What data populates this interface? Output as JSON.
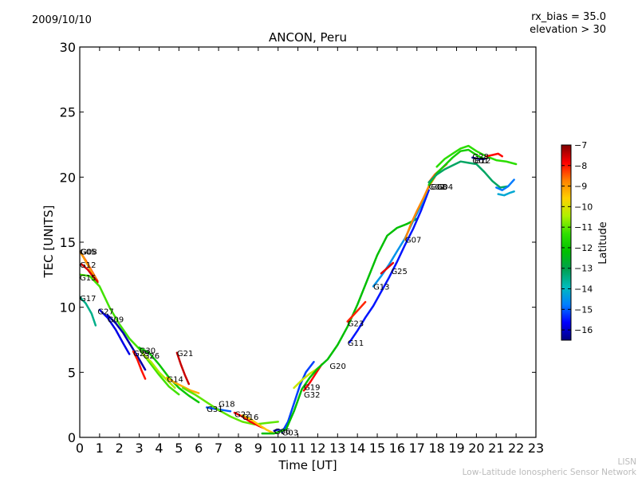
{
  "header": {
    "date": "2009/10/10",
    "rx_bias": "rx_bias = 35.0",
    "elevation": "elevation > 30"
  },
  "footer": {
    "line1": "LISN",
    "line2": "Low-Latitude Ionospheric Sensor Network"
  },
  "chart_data": {
    "type": "line",
    "title": "ANCON, Peru",
    "xlabel": "Time [UT]",
    "ylabel": "TEC [UNITS]",
    "xlim": [
      0,
      23
    ],
    "ylim": [
      0,
      30
    ],
    "xticks": [
      "0",
      "1",
      "2",
      "3",
      "4",
      "5",
      "6",
      "7",
      "8",
      "9",
      "10",
      "11",
      "12",
      "13",
      "14",
      "15",
      "16",
      "17",
      "18",
      "19",
      "20",
      "21",
      "22",
      "23"
    ],
    "yticks": [
      "0",
      "5",
      "10",
      "15",
      "20",
      "25",
      "30"
    ],
    "grid": false,
    "colorbar": {
      "label": "Latitude",
      "range": [
        -16.5,
        -7
      ],
      "ticks": [
        "−7",
        "−8",
        "−9",
        "−10",
        "−11",
        "−12",
        "−13",
        "−14",
        "−15",
        "−16"
      ],
      "colormap": [
        "#00007f",
        "#0000ff",
        "#007fff",
        "#00bcbc",
        "#00a050",
        "#00c000",
        "#30e000",
        "#b0f000",
        "#ffd000",
        "#ff8000",
        "#ff0000",
        "#7f0000"
      ]
    },
    "series": [
      {
        "name": "G05",
        "lat": -8.2,
        "x": [
          0.0,
          0.3,
          0.6,
          0.9
        ],
        "y": [
          14.3,
          13.6,
          12.8,
          12.0
        ]
      },
      {
        "name": "G08",
        "lat": -9.0,
        "x": [
          0.0,
          0.2,
          0.5,
          0.8
        ],
        "y": [
          14.3,
          13.8,
          13.0,
          12.2
        ]
      },
      {
        "name": "G12",
        "lat": -7.6,
        "x": [
          0.1,
          0.4,
          0.7,
          0.9
        ],
        "y": [
          13.3,
          12.9,
          12.3,
          11.9
        ]
      },
      {
        "name": "G15",
        "lat": -11.2,
        "x": [
          0.0,
          0.5,
          1.0,
          1.5,
          2.0,
          2.5,
          3.0,
          3.5,
          4.0,
          4.5,
          5.0
        ],
        "y": [
          12.5,
          12.4,
          11.6,
          10.0,
          8.7,
          7.6,
          6.8,
          5.8,
          4.8,
          3.9,
          3.3
        ]
      },
      {
        "name": "G17",
        "lat": -13.5,
        "x": [
          0.0,
          0.3,
          0.6,
          0.8
        ],
        "y": [
          10.8,
          10.3,
          9.5,
          8.6
        ]
      },
      {
        "name": "G27",
        "lat": -15.8,
        "x": [
          1.0,
          1.4,
          1.8,
          2.2,
          2.5
        ],
        "y": [
          9.8,
          9.2,
          8.3,
          7.2,
          6.4
        ]
      },
      {
        "name": "G09",
        "lat": -16.2,
        "x": [
          1.4,
          1.8,
          2.2,
          2.6,
          3.0,
          3.3
        ],
        "y": [
          9.4,
          8.8,
          8.0,
          7.0,
          6.0,
          5.2
        ]
      },
      {
        "name": "G30",
        "lat": -12.0,
        "x": [
          3.0,
          3.5,
          4.0,
          4.5,
          5.0,
          5.5,
          6.0
        ],
        "y": [
          6.9,
          6.5,
          5.6,
          4.6,
          3.8,
          3.2,
          2.7
        ]
      },
      {
        "name": "G29",
        "lat": -8.0,
        "x": [
          2.7,
          2.9,
          3.1,
          3.3
        ],
        "y": [
          6.6,
          6.0,
          5.2,
          4.5
        ]
      },
      {
        "name": "G26",
        "lat": -10.5,
        "x": [
          3.2,
          3.6,
          4.0,
          4.4,
          4.8
        ],
        "y": [
          6.4,
          5.8,
          5.0,
          4.4,
          3.8
        ]
      },
      {
        "name": "G21",
        "lat": -7.5,
        "x": [
          4.9,
          5.1,
          5.3,
          5.5
        ],
        "y": [
          6.5,
          5.6,
          4.8,
          4.1
        ]
      },
      {
        "name": "G14",
        "lat": -9.2,
        "x": [
          4.4,
          4.8,
          5.2,
          5.6,
          6.0
        ],
        "y": [
          4.6,
          4.2,
          3.9,
          3.6,
          3.4
        ]
      },
      {
        "name": "G31",
        "lat": -15.0,
        "x": [
          6.4,
          6.8,
          7.2,
          7.6
        ],
        "y": [
          2.3,
          2.2,
          2.1,
          2.0
        ]
      },
      {
        "name": "G18",
        "lat": -11.0,
        "x": [
          5.2,
          5.8,
          6.4,
          7.0,
          7.6,
          8.2,
          8.8,
          9.4,
          10.0
        ],
        "y": [
          3.8,
          3.3,
          2.7,
          2.1,
          1.6,
          1.2,
          1.0,
          1.1,
          1.2
        ]
      },
      {
        "name": "G22",
        "lat": -7.8,
        "x": [
          7.8,
          8.2,
          8.6,
          9.0,
          9.3
        ],
        "y": [
          1.9,
          1.6,
          1.2,
          0.9,
          0.7
        ]
      },
      {
        "name": "G16",
        "lat": -9.5,
        "x": [
          8.2,
          8.6,
          9.0,
          9.4,
          9.8
        ],
        "y": [
          1.7,
          1.4,
          1.0,
          0.6,
          0.3
        ]
      },
      {
        "name": "G06",
        "lat": -16.0,
        "x": [
          9.8,
          10.0,
          10.2,
          10.4
        ],
        "y": [
          0.5,
          0.6,
          0.5,
          0.7
        ]
      },
      {
        "name": "G03",
        "lat": -15.2,
        "x": [
          10.2,
          10.5,
          10.8,
          11.1,
          11.4,
          11.8
        ],
        "y": [
          0.4,
          1.2,
          2.6,
          4.0,
          5.0,
          5.8
        ]
      },
      {
        "name": "G19",
        "lat": -10.2,
        "x": [
          10.8,
          11.2,
          11.6,
          12.0
        ],
        "y": [
          3.8,
          4.4,
          4.9,
          5.3
        ]
      },
      {
        "name": "G32",
        "lat": -7.9,
        "x": [
          11.3,
          11.6,
          11.9,
          12.2
        ],
        "y": [
          3.6,
          4.2,
          4.9,
          5.6
        ]
      },
      {
        "name": "G20",
        "lat": -12.2,
        "x": [
          9.2,
          9.8,
          10.4,
          10.8,
          11.2,
          11.6,
          12.0,
          12.5,
          13.0,
          13.5,
          14.0,
          14.5,
          15.0,
          15.5,
          16.0,
          16.5,
          17.0
        ],
        "y": [
          0.3,
          0.3,
          0.6,
          2.0,
          3.7,
          4.6,
          5.3,
          6.0,
          7.1,
          8.5,
          10.2,
          12.1,
          14.0,
          15.5,
          16.1,
          16.4,
          16.8
        ]
      },
      {
        "name": "G23",
        "lat": -8.1,
        "x": [
          13.5,
          13.8,
          14.1,
          14.4
        ],
        "y": [
          8.9,
          9.4,
          9.9,
          10.4
        ]
      },
      {
        "name": "G11",
        "lat": -15.5,
        "x": [
          13.6,
          14.0,
          14.4,
          14.8,
          15.2,
          15.6,
          16.0,
          16.4,
          16.8,
          17.2,
          17.6
        ],
        "y": [
          7.3,
          8.2,
          9.2,
          10.1,
          11.2,
          12.3,
          13.5,
          14.8,
          16.0,
          17.4,
          19.0
        ]
      },
      {
        "name": "G13",
        "lat": -14.5,
        "x": [
          14.8,
          15.2,
          15.6,
          16.0,
          16.4,
          16.8,
          17.2,
          17.6
        ],
        "y": [
          11.6,
          12.4,
          13.3,
          14.3,
          15.3,
          16.6,
          17.8,
          19.3
        ]
      },
      {
        "name": "G25",
        "lat": -7.7,
        "x": [
          15.2,
          15.5,
          15.8
        ],
        "y": [
          12.6,
          13.0,
          13.4
        ]
      },
      {
        "name": "G07",
        "lat": -8.8,
        "x": [
          16.4,
          16.7,
          17.0,
          17.3,
          17.6,
          17.9
        ],
        "y": [
          15.2,
          16.4,
          17.4,
          18.3,
          19.3,
          20.0
        ]
      },
      {
        "name": "G02",
        "lat": -8.5,
        "x": [
          17.6,
          17.9,
          18.2,
          18.5
        ],
        "y": [
          19.6,
          20.2,
          20.6,
          21.0
        ]
      },
      {
        "name": "G08b",
        "lat": -11.8,
        "x": [
          17.6,
          18.0,
          18.4,
          18.8,
          19.2,
          19.6,
          20.0,
          20.4
        ],
        "y": [
          19.4,
          20.3,
          20.9,
          21.5,
          22.0,
          22.1,
          21.7,
          21.4
        ]
      },
      {
        "name": "G04",
        "lat": -13.2,
        "x": [
          17.6,
          18.0,
          18.4,
          18.8,
          19.2,
          19.6,
          20.0,
          20.4,
          20.8,
          21.2,
          21.6
        ],
        "y": [
          19.6,
          20.2,
          20.6,
          20.9,
          21.2,
          21.1,
          21.0,
          20.4,
          19.7,
          19.2,
          19.3
        ]
      },
      {
        "name": "G28",
        "lat": -11.4,
        "x": [
          18.0,
          18.4,
          18.8,
          19.2,
          19.6,
          20.0,
          20.5,
          21.0,
          21.5,
          22.0
        ],
        "y": [
          20.8,
          21.4,
          21.8,
          22.2,
          22.4,
          22.0,
          21.6,
          21.3,
          21.2,
          21.0
        ]
      },
      {
        "name": "G01",
        "lat": -16.3,
        "x": [
          19.8,
          20.1,
          20.4
        ],
        "y": [
          21.5,
          21.4,
          21.4
        ]
      },
      {
        "name": "G10",
        "lat": -7.9,
        "x": [
          20.5,
          20.8,
          21.1,
          21.3
        ],
        "y": [
          21.6,
          21.7,
          21.8,
          21.6
        ]
      },
      {
        "name": "G24",
        "lat": -14.8,
        "x": [
          21.0,
          21.3,
          21.6,
          21.9
        ],
        "y": [
          19.2,
          19.0,
          19.3,
          19.8
        ]
      },
      {
        "name": "G33",
        "lat": -14.2,
        "x": [
          21.1,
          21.4,
          21.7,
          21.9
        ],
        "y": [
          18.7,
          18.6,
          18.8,
          18.9
        ]
      }
    ],
    "labels": [
      {
        "text": "G05",
        "x": 0.0,
        "y": 14.3
      },
      {
        "text": "G08",
        "x": 0.05,
        "y": 14.3
      },
      {
        "text": "G12",
        "x": 0.0,
        "y": 13.3
      },
      {
        "text": "G15",
        "x": 0.0,
        "y": 12.3
      },
      {
        "text": "G17",
        "x": 0.0,
        "y": 10.7
      },
      {
        "text": "G27",
        "x": 0.9,
        "y": 9.7
      },
      {
        "text": "G09",
        "x": 1.4,
        "y": 9.1
      },
      {
        "text": "G29",
        "x": 2.7,
        "y": 6.5
      },
      {
        "text": "G30",
        "x": 3.0,
        "y": 6.7
      },
      {
        "text": "G26",
        "x": 3.2,
        "y": 6.3
      },
      {
        "text": "G21",
        "x": 4.9,
        "y": 6.5
      },
      {
        "text": "G14",
        "x": 4.4,
        "y": 4.5
      },
      {
        "text": "G31",
        "x": 6.4,
        "y": 2.2
      },
      {
        "text": "G18",
        "x": 7.0,
        "y": 2.6
      },
      {
        "text": "G22",
        "x": 7.8,
        "y": 1.8
      },
      {
        "text": "G16",
        "x": 8.2,
        "y": 1.6
      },
      {
        "text": "G06",
        "x": 9.8,
        "y": 0.5
      },
      {
        "text": "G03",
        "x": 10.2,
        "y": 0.4
      },
      {
        "text": "G19",
        "x": 11.3,
        "y": 3.9
      },
      {
        "text": "G32",
        "x": 11.3,
        "y": 3.3
      },
      {
        "text": "G20",
        "x": 12.6,
        "y": 5.5
      },
      {
        "text": "G23",
        "x": 13.5,
        "y": 8.8
      },
      {
        "text": "G11",
        "x": 13.5,
        "y": 7.3
      },
      {
        "text": "G13",
        "x": 14.8,
        "y": 11.6
      },
      {
        "text": "G25",
        "x": 15.7,
        "y": 12.8
      },
      {
        "text": "G07",
        "x": 16.4,
        "y": 15.2
      },
      {
        "text": "G02",
        "x": 17.6,
        "y": 19.3
      },
      {
        "text": "G08",
        "x": 17.7,
        "y": 19.3
      },
      {
        "text": "G04",
        "x": 18.0,
        "y": 19.3
      },
      {
        "text": "G28",
        "x": 19.8,
        "y": 21.6
      },
      {
        "text": "G01",
        "x": 19.8,
        "y": 21.3
      },
      {
        "text": "G12",
        "x": 19.9,
        "y": 21.3
      }
    ]
  }
}
